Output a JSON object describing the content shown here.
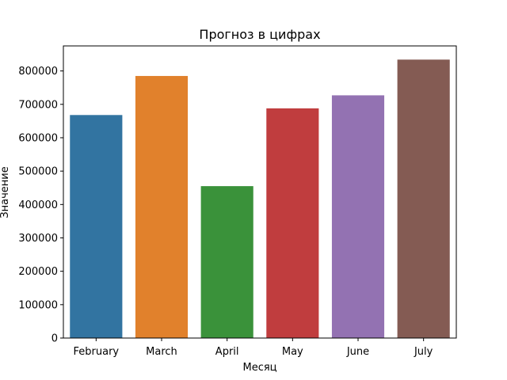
{
  "chart_data": {
    "type": "bar",
    "title": "Прогноз в цифрах",
    "xlabel": "Месяц",
    "ylabel": "Значение",
    "categories": [
      "February",
      "March",
      "April",
      "May",
      "June",
      "July"
    ],
    "values": [
      668000,
      785000,
      455000,
      688000,
      727000,
      834000
    ],
    "colors": [
      "#3274a1",
      "#e1812c",
      "#3a923a",
      "#c03d3e",
      "#9372b2",
      "#845b53"
    ],
    "ylim": [
      0,
      875000
    ],
    "yticks": [
      0,
      100000,
      200000,
      300000,
      400000,
      500000,
      600000,
      700000,
      800000
    ],
    "ytick_labels": [
      "0",
      "100000",
      "200000",
      "300000",
      "400000",
      "500000",
      "600000",
      "700000",
      "800000"
    ],
    "grid": false,
    "legend": false
  }
}
